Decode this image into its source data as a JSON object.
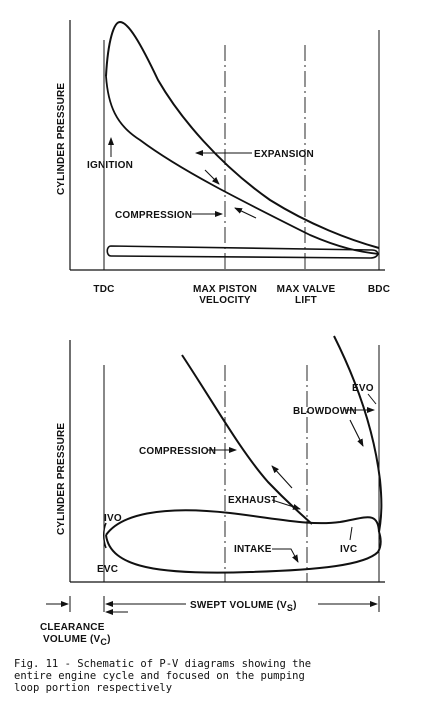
{
  "top_diagram": {
    "y_axis_label": "CYLINDER PRESSURE",
    "annotations": {
      "ignition": "IGNITION",
      "expansion": "EXPANSION",
      "compression": "COMPRESSION"
    },
    "x_markers": {
      "tdc": "TDC",
      "max_piston_velocity_line1": "MAX PISTON",
      "max_piston_velocity_line2": "VELOCITY",
      "max_valve_lift_line1": "MAX VALVE",
      "max_valve_lift_line2": "LIFT",
      "bdc": "BDC"
    }
  },
  "bottom_diagram": {
    "y_axis_label": "CYLINDER PRESSURE",
    "annotations": {
      "evo": "EVO",
      "blowdown": "BLOWDOWN",
      "compression": "COMPRESSION",
      "exhaust": "EXHAUST",
      "ivo": "IVO",
      "intake": "INTAKE",
      "ivc": "IVC",
      "evc": "EVC"
    },
    "swept_volume": "SWEPT VOLUME (V",
    "swept_volume_sub": "S",
    "clearance_line1": "CLEARANCE",
    "clearance_line2": "VOLUME (V",
    "clearance_sub": "C"
  },
  "caption": {
    "line1": "Fig. 11 - Schematic of P-V diagrams showing the",
    "line2": "entire engine cycle and focused on the pumping",
    "line3": "loop portion respectively"
  }
}
